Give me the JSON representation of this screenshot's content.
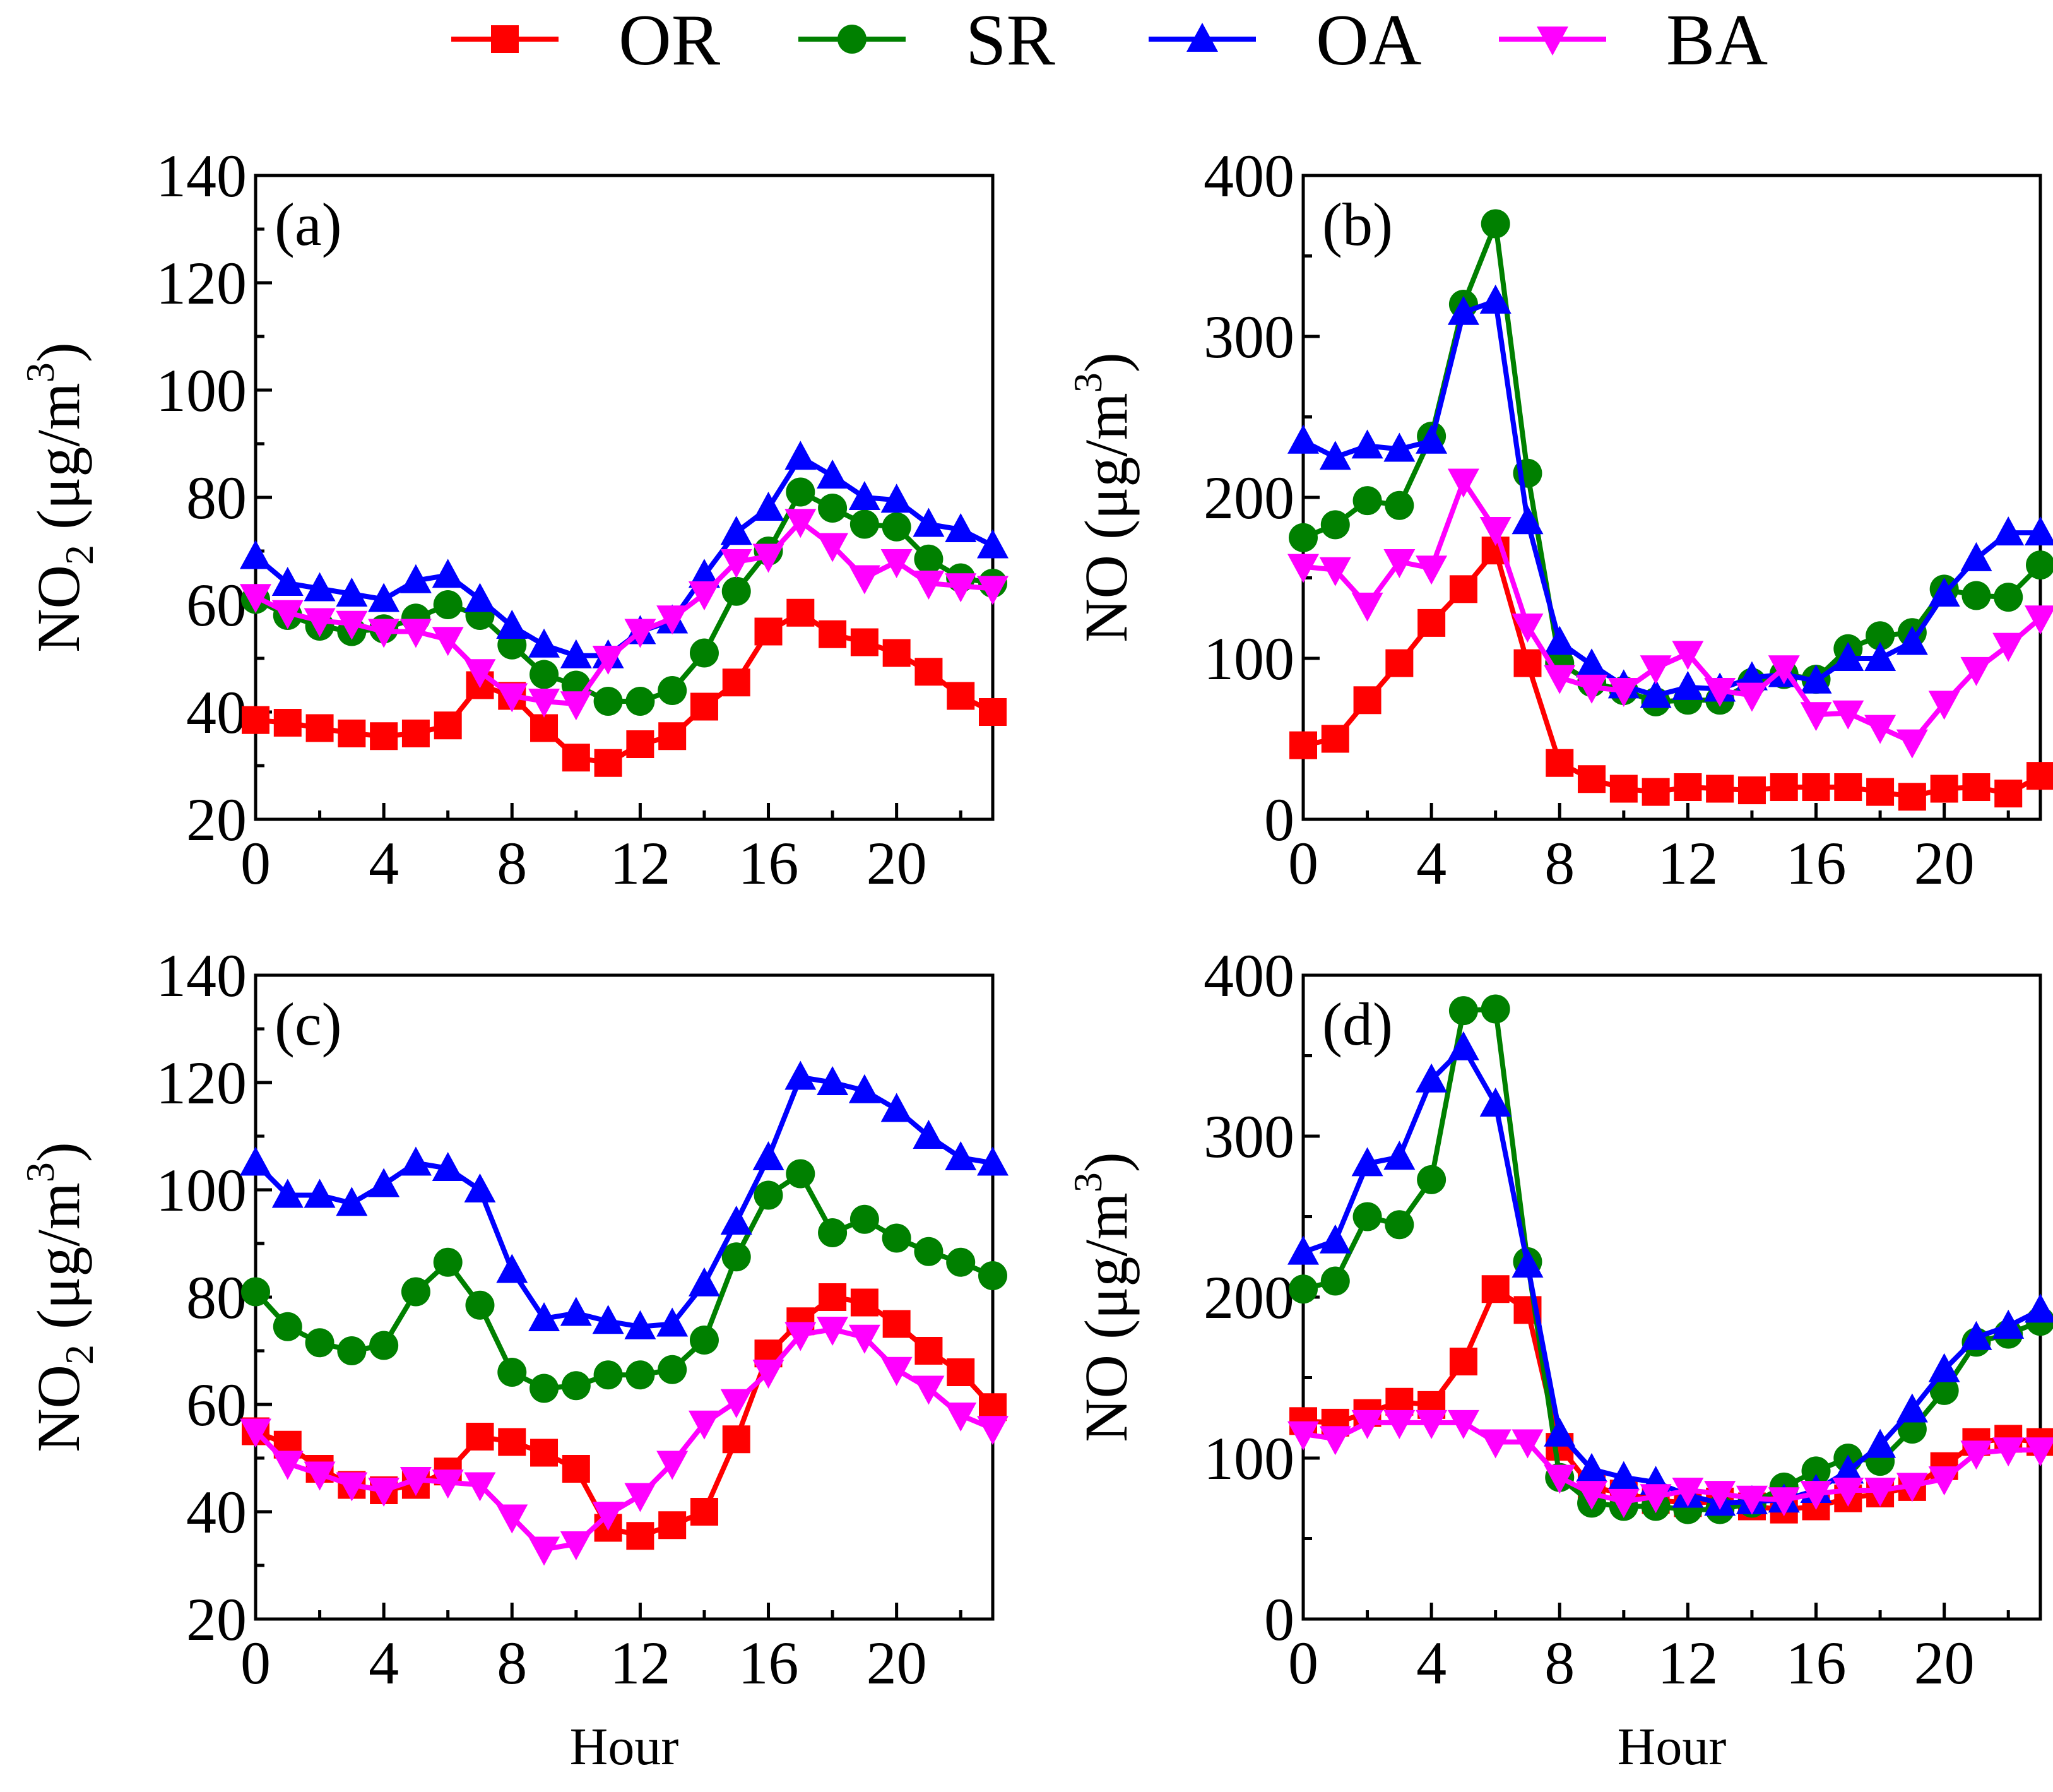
{
  "chart_data": {
    "legend": {
      "placement": "top",
      "entries": [
        {
          "name": "OR",
          "color": "#ff0000",
          "marker": "square"
        },
        {
          "name": "SR",
          "color": "#008000",
          "marker": "circle"
        },
        {
          "name": "OA",
          "color": "#0000ff",
          "marker": "triangle-up"
        },
        {
          "name": "BA",
          "color": "#ff00ff",
          "marker": "triangle-down"
        }
      ]
    },
    "panels": [
      {
        "type": "line",
        "label": "(a)",
        "ylabel_main": "NO",
        "ylabel_sub": "2",
        "ylabel_unit": " (μg/m",
        "ylabel_sup": "3",
        "ylabel_close": ")",
        "xlabel": "",
        "xlim": [
          0,
          23
        ],
        "ylim": [
          20,
          140
        ],
        "xticks": [
          0,
          4,
          8,
          12,
          16,
          20
        ],
        "yticks": [
          20,
          40,
          60,
          80,
          100,
          120,
          140
        ],
        "tick_labels_x": [
          "0",
          "4",
          "8",
          "12",
          "16",
          "20"
        ],
        "tick_labels_y": [
          "20",
          "40",
          "60",
          "80",
          "100",
          "120",
          "140"
        ],
        "x": [
          0,
          1,
          2,
          3,
          4,
          5,
          6,
          7,
          8,
          9,
          10,
          11,
          12,
          13,
          14,
          15,
          16,
          17,
          18,
          19,
          20,
          21,
          22,
          23
        ],
        "series": [
          {
            "name": "OR",
            "values": [
              38.5,
              38,
              37,
              36,
              35.5,
              36,
              37.5,
              45,
              43,
              37,
              31.5,
              30.5,
              34,
              35.5,
              41,
              45.5,
              55,
              58.5,
              54.5,
              53,
              51,
              47.5,
              43,
              40
            ]
          },
          {
            "name": "SR",
            "values": [
              61,
              58,
              56,
              55,
              55.5,
              57.5,
              60,
              58,
              52.5,
              47,
              45,
              42,
              42,
              44,
              51,
              62.5,
              70,
              81,
              78,
              75,
              74.5,
              68.5,
              65,
              64
            ]
          },
          {
            "name": "OA",
            "values": [
              69,
              64,
              63,
              62,
              61,
              64.5,
              65.5,
              61,
              56,
              52.5,
              50.5,
              50.5,
              55,
              57,
              65.5,
              73.5,
              78,
              87.5,
              84,
              80,
              79.5,
              75,
              74,
              71
            ]
          },
          {
            "name": "BA",
            "values": [
              61.5,
              58.5,
              57,
              56.5,
              55,
              55,
              53.5,
              47.5,
              43,
              42,
              41.5,
              50,
              55,
              57.5,
              62,
              68,
              69,
              75.5,
              71,
              65,
              68,
              64,
              63.5,
              63
            ]
          }
        ]
      },
      {
        "type": "line",
        "label": "(b)",
        "ylabel_main": "NO",
        "ylabel_sub": "",
        "ylabel_unit": " (μg/m",
        "ylabel_sup": "3",
        "ylabel_close": ")",
        "xlabel": "",
        "xlim": [
          0,
          23
        ],
        "ylim": [
          0,
          400
        ],
        "xticks": [
          0,
          4,
          8,
          12,
          16,
          20
        ],
        "yticks": [
          0,
          100,
          200,
          300,
          400
        ],
        "tick_labels_x": [
          "0",
          "4",
          "8",
          "12",
          "16",
          "20"
        ],
        "tick_labels_y": [
          "0",
          "100",
          "200",
          "300",
          "400"
        ],
        "x": [
          0,
          1,
          2,
          3,
          4,
          5,
          6,
          7,
          8,
          9,
          10,
          11,
          12,
          13,
          14,
          15,
          16,
          17,
          18,
          19,
          20,
          21,
          22,
          23
        ],
        "series": [
          {
            "name": "OR",
            "values": [
              46,
              50,
              74,
              97,
              122,
              143,
              167,
              97,
              35,
              25,
              19,
              17,
              20,
              19,
              18,
              20,
              20,
              20,
              17,
              14,
              19,
              20,
              16,
              27
            ]
          },
          {
            "name": "SR",
            "values": [
              175,
              183,
              198,
              195,
              238,
              320,
              370,
              215,
              97,
              85,
              80,
              73,
              74,
              74,
              85,
              90,
              87,
              106,
              114,
              116,
              143,
              139,
              138,
              158
            ]
          },
          {
            "name": "OA",
            "values": [
              235,
              225,
              232,
              230,
              235,
              315,
              322,
              185,
              110,
              96,
              83,
              77,
              82,
              81,
              88,
              90,
              86,
              100,
              100,
              110,
              140,
              162,
              178,
              178
            ]
          },
          {
            "name": "BA",
            "values": [
              157,
              155,
              133,
              160,
              156,
              210,
              180,
              120,
              88,
              82,
              80,
              94,
              103,
              80,
              77,
              94,
              65,
              66,
              57,
              48,
              72,
              93,
              108,
              125
            ]
          }
        ]
      },
      {
        "type": "line",
        "label": "(c)",
        "ylabel_main": "NO",
        "ylabel_sub": "2",
        "ylabel_unit": " (μg/m",
        "ylabel_sup": "3",
        "ylabel_close": ")",
        "xlabel": "Hour",
        "xlim": [
          0,
          23
        ],
        "ylim": [
          20,
          140
        ],
        "xticks": [
          0,
          4,
          8,
          12,
          16,
          20
        ],
        "yticks": [
          20,
          40,
          60,
          80,
          100,
          120,
          140
        ],
        "tick_labels_x": [
          "0",
          "4",
          "8",
          "12",
          "16",
          "20"
        ],
        "tick_labels_y": [
          "20",
          "40",
          "60",
          "80",
          "100",
          "120",
          "140"
        ],
        "x": [
          0,
          1,
          2,
          3,
          4,
          5,
          6,
          7,
          8,
          9,
          10,
          11,
          12,
          13,
          14,
          15,
          16,
          17,
          18,
          19,
          20,
          21,
          22,
          23
        ],
        "series": [
          {
            "name": "OR",
            "values": [
              55,
              52.5,
              48,
              45,
              44,
              45,
              47.5,
              54,
              53,
              51,
              48,
              37,
              35.5,
              37.5,
              40,
              53.5,
              69.5,
              75.5,
              80,
              79,
              75,
              70,
              66,
              59.5
            ]
          },
          {
            "name": "SR",
            "values": [
              81,
              74.5,
              71.5,
              70,
              71,
              81,
              86.5,
              78.5,
              66,
              63,
              63.5,
              65.5,
              65.5,
              66.5,
              72,
              87.5,
              99,
              103,
              92,
              94.5,
              91,
              88.5,
              86.5,
              84
            ]
          },
          {
            "name": "OA",
            "values": [
              105,
              99,
              99,
              97.5,
              101,
              105,
              104,
              100,
              85,
              76,
              77,
              75.5,
              74.5,
              75,
              82.5,
              94,
              106,
              121,
              120,
              118.5,
              115,
              110,
              106,
              105
            ]
          },
          {
            "name": "BA",
            "values": [
              55,
              49,
              47,
              45,
              44,
              46,
              45.5,
              45,
              39,
              33,
              34,
              39.5,
              43,
              49,
              56.5,
              60.5,
              66,
              73,
              74,
              72.5,
              66.5,
              63,
              58,
              55.5
            ]
          }
        ]
      },
      {
        "type": "line",
        "label": "(d)",
        "ylabel_main": "NO",
        "ylabel_sub": "",
        "ylabel_unit": " (μg/m",
        "ylabel_sup": "3",
        "ylabel_close": ")",
        "xlabel": "Hour",
        "xlim": [
          0,
          23
        ],
        "ylim": [
          0,
          400
        ],
        "xticks": [
          0,
          4,
          8,
          12,
          16,
          20
        ],
        "yticks": [
          0,
          100,
          200,
          300,
          400
        ],
        "tick_labels_x": [
          "0",
          "4",
          "8",
          "12",
          "16",
          "20"
        ],
        "tick_labels_y": [
          "0",
          "100",
          "200",
          "300",
          "400"
        ],
        "x": [
          0,
          1,
          2,
          3,
          4,
          5,
          6,
          7,
          8,
          9,
          10,
          11,
          12,
          13,
          14,
          15,
          16,
          17,
          18,
          19,
          20,
          21,
          22,
          23
        ],
        "series": [
          {
            "name": "OR",
            "values": [
              123,
              122,
              128,
              135,
              133,
              160,
              205,
              192,
              107,
              82,
              78,
              74,
              72,
              73,
              70,
              68,
              70,
              75,
              78,
              82,
              95,
              110,
              112,
              110
            ]
          },
          {
            "name": "SR",
            "values": [
              205,
              210,
              250,
              245,
              273,
              378,
              379,
              222,
              88,
              72,
              70,
              70,
              68,
              68,
              72,
              82,
              92,
              100,
              98,
              118,
              142,
              172,
              177,
              185
            ]
          },
          {
            "name": "OA",
            "values": [
              228,
              235,
              283,
              287,
              335,
              355,
              320,
              220,
              115,
              93,
              88,
              85,
              77,
              72,
              73,
              74,
              80,
              92,
              108,
              130,
              155,
              175,
              182,
              192
            ]
          },
          {
            "name": "BA",
            "values": [
              115,
              112,
              122,
              122,
              122,
              122,
              110,
              110,
              88,
              78,
              73,
              76,
              80,
              78,
              75,
              74,
              78,
              80,
              80,
              83,
              87,
              103,
              105,
              105
            ]
          }
        ]
      }
    ]
  }
}
